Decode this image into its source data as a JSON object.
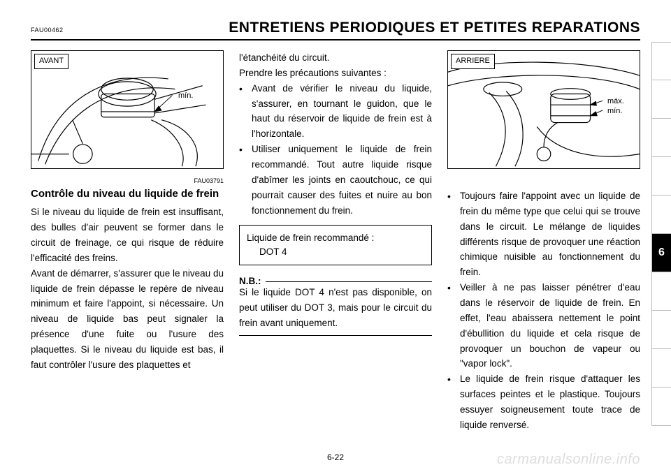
{
  "header": {
    "code": "FAU00462",
    "title": "ENTRETIENS PERIODIQUES ET PETITES REPARATIONS"
  },
  "side_tabs": {
    "count": 10,
    "active_index": 5,
    "active_label": "6"
  },
  "footer": {
    "page": "6-22"
  },
  "watermark": "carmanualsonline.info",
  "col1": {
    "figure": {
      "label": "AVANT",
      "min_text": "mín."
    },
    "fig_code": "FAU03791",
    "subheading": "Contrôle du niveau du liquide de frein",
    "p1": "Si le niveau du liquide de frein est insuffisant, des bulles d'air peuvent se former dans le circuit de freinage, ce qui risque de réduire l'efficacité des freins.",
    "p2": "Avant de démarrer, s'assurer que le niveau du liquide de frein dépasse le repère de niveau minimum et faire l'appoint, si nécessaire. Un niveau de liquide bas peut signaler la présence d'une fuite ou l'usure des plaquettes. Si le niveau du liquide est bas, il faut contrôler l'usure des plaquettes et"
  },
  "col2": {
    "lead": "l'étanchéité du circuit.",
    "p1": "Prendre les précautions suivantes :",
    "b1": "Avant de vérifier le niveau du liqui­de, s'assurer, en tournant le gui­don, que le haut du réservoir de liquide de frein est à l'horizontale.",
    "b2": "Utiliser uniquement le liquide de frein recommandé. Tout autre liquide risque d'abîmer les joints en caoutchouc, ce qui pourrait causer des fuites et nuire au bon fonctionnement du frein.",
    "reco_l1": "Liquide de frein recommandé :",
    "reco_l2": "DOT 4",
    "nb_label": "N.B.:",
    "nb_text": "Si le liquide DOT 4 n'est pas disponi­ble, on peut utiliser du DOT 3, mais pour le circuit du frein avant unique­ment."
  },
  "col3": {
    "figure": {
      "label": "ARRIERE",
      "max_text": "máx.",
      "min_text": "mín."
    },
    "b1": "Toujours faire l'appoint avec un liqui­de de frein du même type que celui qui se trouve dans le circuit. Le mélange de liquides différents risque de provoquer une réaction chimique nuisible au fonctionnement du frein.",
    "b2": "Veiller à ne pas laisser pénétrer d'e­au dans le réservoir de liquide de frein. En effet, l'eau abaissera nette­ment le point d'ébullition du liquide et cela risque de provoquer un bou­chon de vapeur ou \"vapor lock\".",
    "b3": "Le liquide de frein risque d'attaquer les surfaces peintes et le plastique. Toujours essuyer soigneusement toute trace de liquide renversé."
  }
}
